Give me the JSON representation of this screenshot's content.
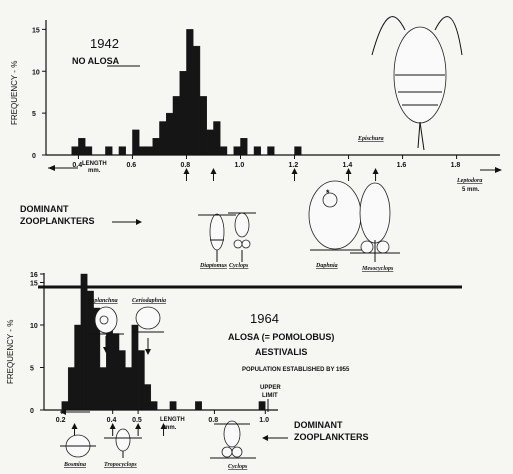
{
  "chart_data": [
    {
      "type": "bar",
      "title": "1942",
      "subtitle": "NO ALOSA",
      "xlabel": "LENGTH mm.",
      "ylabel": "FREQUENCY - %",
      "xlim": [
        0.28,
        1.82
      ],
      "ylim": [
        0,
        16
      ],
      "xticks": [
        "0.4",
        "0.6",
        "0.8",
        "1.0",
        "1.2",
        "1.4",
        "1.6",
        "1.8"
      ],
      "yticks": [
        "0",
        "5",
        "10",
        "15"
      ],
      "bin_width": 0.025,
      "x": [
        0.375,
        0.4,
        0.425,
        0.5,
        0.55,
        0.6,
        0.625,
        0.65,
        0.675,
        0.7,
        0.725,
        0.75,
        0.775,
        0.8,
        0.825,
        0.85,
        0.875,
        0.9,
        0.925,
        0.975,
        1.0,
        1.05,
        1.1,
        1.2
      ],
      "values": [
        1,
        2,
        1,
        1,
        1,
        3,
        1,
        1,
        2,
        4,
        5,
        7,
        10,
        15,
        13,
        7,
        3,
        4,
        1,
        1,
        2,
        1,
        1,
        1
      ],
      "length_markers": [
        "0.8",
        "0.9",
        "1.2",
        "1.4",
        "1.5"
      ]
    },
    {
      "type": "bar",
      "title": "1964",
      "subtitle": "ALOSA (= POMOLOBUS) AESTIVALIS",
      "note": "POPULATION ESTABLISHED BY 1955",
      "xlabel": "LENGTH mm.",
      "ylabel": "FREQUENCY - %",
      "xlim": [
        0.13,
        1.05
      ],
      "ylim": [
        0,
        16
      ],
      "xticks": [
        "0.2",
        "0.4",
        "0.5",
        "0.8",
        "1.0"
      ],
      "yticks": [
        "0",
        "5",
        "10",
        "15",
        "16"
      ],
      "bin_width": 0.025,
      "x": [
        0.2,
        0.225,
        0.25,
        0.275,
        0.3,
        0.325,
        0.35,
        0.375,
        0.4,
        0.425,
        0.45,
        0.475,
        0.5,
        0.525,
        0.55,
        0.625,
        0.725,
        0.975
      ],
      "values": [
        1,
        5,
        10,
        16,
        14,
        12,
        5,
        10,
        9,
        7,
        5,
        10,
        7,
        3,
        1,
        1,
        1,
        1
      ],
      "length_markers": [
        "0.25",
        "0.4",
        "0.5",
        "0.6"
      ],
      "upper_limit_label": "UPPER LIMIT"
    }
  ],
  "labels": {
    "dominant_1942": [
      "DOMINANT",
      "ZOOPLANKTERS"
    ],
    "dominant_1964": [
      "DOMINANT",
      "ZOOPLANKTERS"
    ],
    "leptodora": "Leptodora",
    "leptodora_size": "5 mm."
  },
  "species_1942": [
    "Epischura",
    "Diaptomus",
    "Cyclops",
    "Daphnia",
    "Mesocyclops"
  ],
  "species_1964": [
    "Asplanchna",
    "Ceriodaphnia",
    "Bosmina",
    "Tropocyclops",
    "Cyclops"
  ]
}
